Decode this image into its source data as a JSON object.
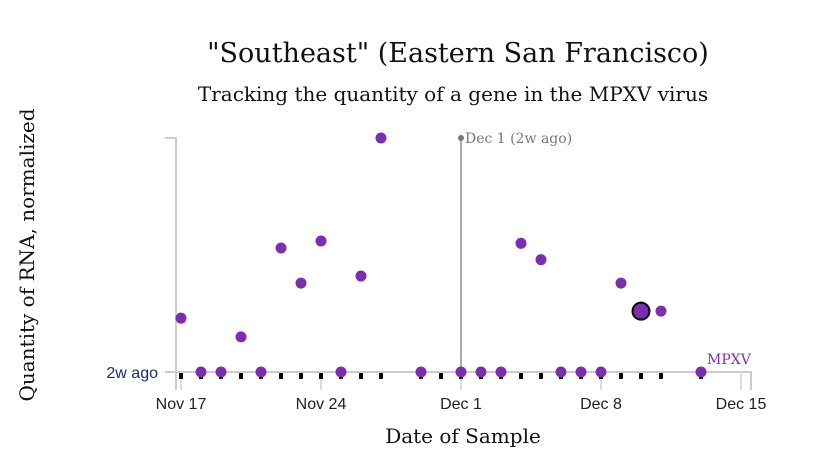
{
  "chart_data": {
    "type": "scatter",
    "title": "\"Southeast\" (Eastern San Francisco)",
    "subtitle": "Tracking the quantity of a gene in the MPXV virus",
    "xlabel": "Date of Sample",
    "ylabel": "Quantity of RNA, normalized",
    "x_ticks": [
      {
        "day": 0,
        "label": "Nov 17"
      },
      {
        "day": 7,
        "label": "Nov 24"
      },
      {
        "day": 14,
        "label": "Dec 1"
      },
      {
        "day": 21,
        "label": "Dec 8"
      },
      {
        "day": 28,
        "label": "Dec 15"
      }
    ],
    "y_tick_label": "2w ago",
    "xlim_days": [
      0,
      28.5
    ],
    "ylim": [
      0,
      1
    ],
    "reference_line": {
      "day": 14,
      "label": "Dec 1 (2w ago)"
    },
    "series_label": "MPXV",
    "color": "#7b2fae",
    "sample_days": [
      0,
      1,
      2,
      3,
      4,
      5,
      6,
      7,
      8,
      9,
      10,
      12,
      13,
      14,
      15,
      16,
      17,
      18,
      19,
      20,
      21,
      22,
      23,
      24,
      26
    ],
    "points": [
      {
        "day": 0,
        "value": 0.23
      },
      {
        "day": 1,
        "value": 0
      },
      {
        "day": 2,
        "value": 0
      },
      {
        "day": 3,
        "value": 0.15
      },
      {
        "day": 4,
        "value": 0
      },
      {
        "day": 5,
        "value": 0.53
      },
      {
        "day": 6,
        "value": 0.38
      },
      {
        "day": 7,
        "value": 0.56
      },
      {
        "day": 8,
        "value": 0
      },
      {
        "day": 9,
        "value": 0.41
      },
      {
        "day": 10,
        "value": 1.0
      },
      {
        "day": 12,
        "value": 0
      },
      {
        "day": 14,
        "value": 0
      },
      {
        "day": 15,
        "value": 0
      },
      {
        "day": 16,
        "value": 0
      },
      {
        "day": 17,
        "value": 0.55
      },
      {
        "day": 18,
        "value": 0.48
      },
      {
        "day": 19,
        "value": 0
      },
      {
        "day": 20,
        "value": 0
      },
      {
        "day": 21,
        "value": 0
      },
      {
        "day": 22,
        "value": 0.38
      },
      {
        "day": 23,
        "value": 0.26,
        "highlighted": true
      },
      {
        "day": 24,
        "value": 0.26
      },
      {
        "day": 26,
        "value": 0
      }
    ]
  }
}
